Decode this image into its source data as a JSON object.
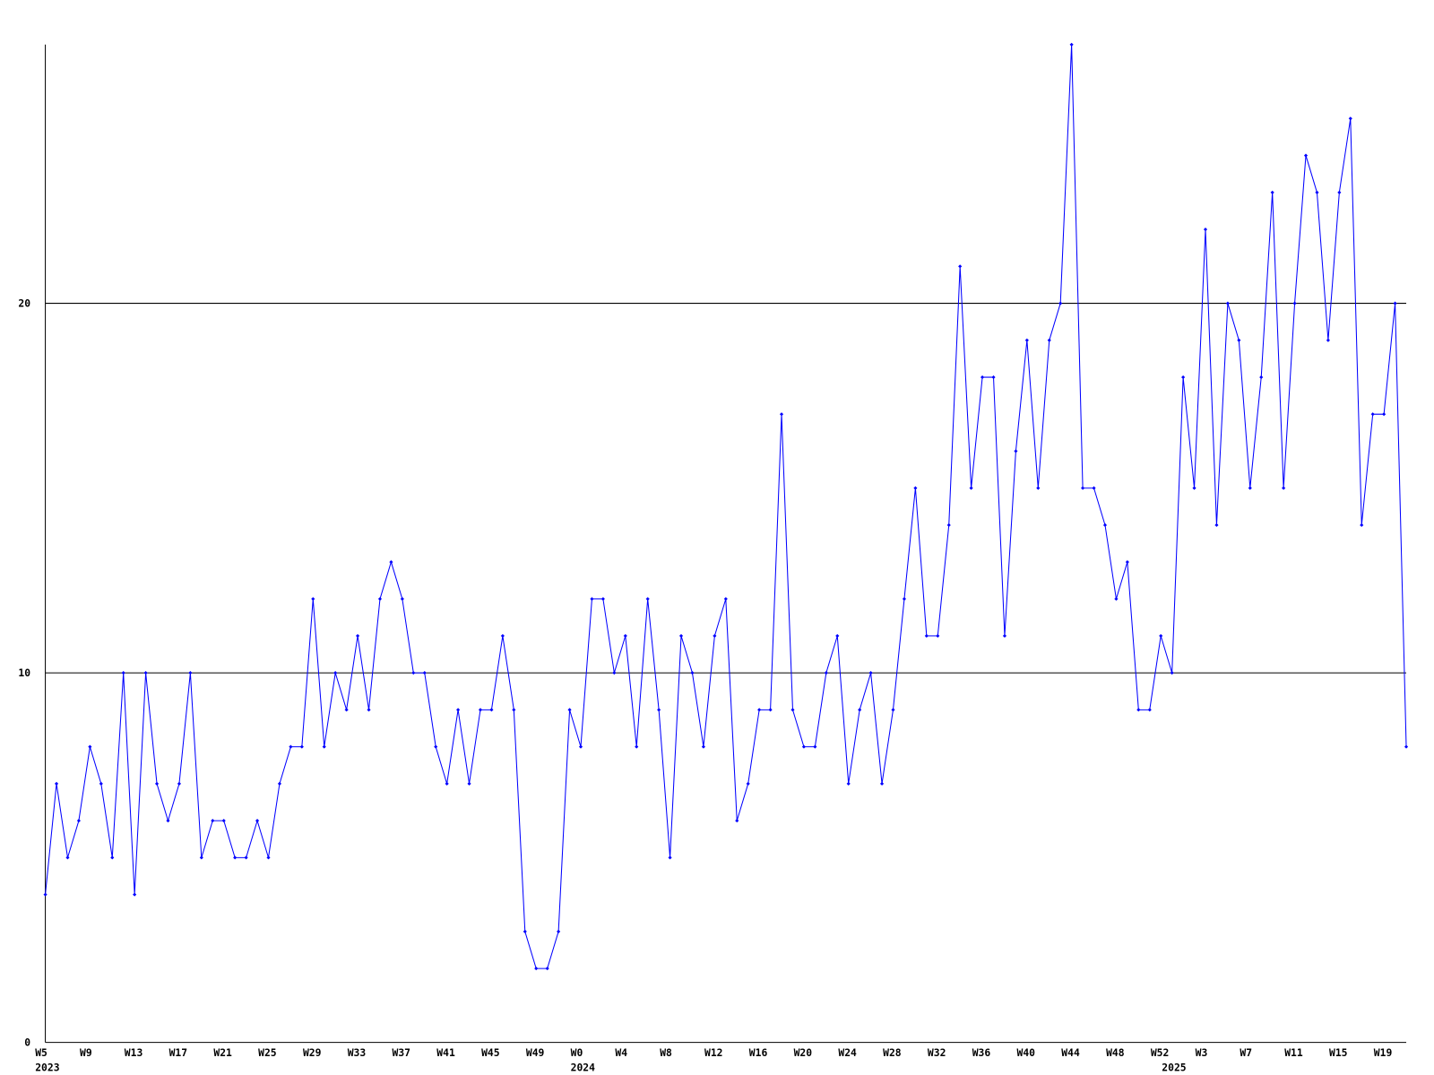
{
  "chart_data": {
    "type": "line",
    "categories": [
      "W5",
      null,
      null,
      null,
      "W9",
      null,
      null,
      null,
      "W13",
      null,
      null,
      null,
      "W17",
      null,
      null,
      null,
      "W21",
      null,
      null,
      null,
      "W25",
      null,
      null,
      null,
      "W29",
      null,
      null,
      null,
      "W33",
      null,
      null,
      null,
      "W37",
      null,
      null,
      null,
      "W41",
      null,
      null,
      null,
      "W45",
      null,
      null,
      null,
      "W49",
      null,
      null,
      null,
      "W0",
      null,
      null,
      null,
      "W4",
      null,
      null,
      null,
      "W8",
      null,
      null,
      null,
      "W12",
      null,
      null,
      null,
      "W16",
      null,
      null,
      null,
      "W20",
      null,
      null,
      null,
      "W24",
      null,
      null,
      null,
      "W28",
      null,
      null,
      null,
      "W32",
      null,
      null,
      null,
      "W36",
      null,
      null,
      null,
      "W40",
      null,
      null,
      null,
      "W44",
      null,
      null,
      null,
      "W48",
      null,
      null,
      null,
      "W52",
      null,
      null,
      null,
      "W3",
      null,
      null,
      null,
      "W7",
      null,
      null,
      null,
      "W11",
      null,
      null,
      null,
      "W15",
      null,
      null,
      null,
      "W19",
      null,
      null
    ],
    "x_group_labels": [
      "2023",
      null,
      null,
      null,
      null,
      null,
      null,
      null,
      null,
      null,
      null,
      null,
      null,
      null,
      null,
      null,
      null,
      null,
      null,
      null,
      null,
      null,
      null,
      null,
      null,
      null,
      null,
      null,
      null,
      null,
      null,
      null,
      null,
      null,
      null,
      null,
      null,
      null,
      null,
      null,
      null,
      null,
      null,
      null,
      null,
      null,
      null,
      null,
      "2024",
      null,
      null,
      null,
      null,
      null,
      null,
      null,
      null,
      null,
      null,
      null,
      null,
      null,
      null,
      null,
      null,
      null,
      null,
      null,
      null,
      null,
      null,
      null,
      null,
      null,
      null,
      null,
      null,
      null,
      null,
      null,
      null,
      null,
      null,
      null,
      null,
      null,
      null,
      null,
      null,
      null,
      null,
      null,
      null,
      null,
      null,
      null,
      null,
      null,
      null,
      null,
      null,
      "2025",
      null,
      null,
      null,
      null,
      null,
      null,
      null,
      null,
      null,
      null,
      null,
      null,
      null,
      null,
      null,
      null,
      null,
      null,
      null,
      null,
      null
    ],
    "series": [
      {
        "color": "#0000ff",
        "values": [
          4,
          7,
          5,
          6,
          8,
          7,
          5,
          10,
          4,
          10,
          7,
          6,
          7,
          10,
          5,
          6,
          6,
          5,
          5,
          6,
          5,
          7,
          8,
          8,
          12,
          8,
          10,
          9,
          11,
          9,
          12,
          13,
          12,
          10,
          10,
          8,
          7,
          9,
          7,
          9,
          9,
          11,
          9,
          3,
          2,
          2,
          3,
          9,
          8,
          12,
          12,
          10,
          11,
          8,
          12,
          9,
          5,
          11,
          10,
          8,
          11,
          12,
          6,
          7,
          9,
          9,
          17,
          9,
          8,
          8,
          10,
          11,
          7,
          9,
          10,
          7,
          9,
          12,
          15,
          11,
          11,
          14,
          21,
          15,
          18,
          18,
          11,
          16,
          19,
          15,
          19,
          20,
          27,
          15,
          15,
          14,
          12,
          13,
          9,
          9,
          11,
          10,
          18,
          15,
          22,
          14,
          20,
          19,
          15,
          18,
          23,
          15,
          20,
          24,
          23,
          19,
          23,
          25,
          14,
          17,
          17,
          20,
          8
        ]
      }
    ],
    "ylim": [
      0,
      27
    ],
    "yticks": [
      0,
      10,
      20
    ],
    "grid": true
  }
}
